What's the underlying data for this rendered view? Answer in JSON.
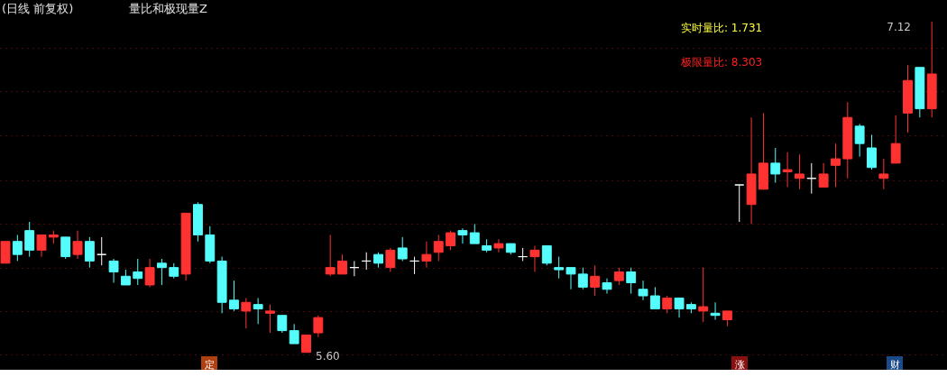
{
  "chart_data": {
    "type": "candlestick",
    "title": "(日线 前复权)",
    "subtitle": "量比和极现量Z",
    "categories": [
      null,
      null,
      null,
      null,
      null,
      null,
      null,
      null,
      null,
      null,
      null,
      null,
      null,
      null,
      null,
      null,
      null,
      null,
      null,
      null,
      null,
      null,
      null,
      null,
      null,
      null,
      null,
      null,
      null,
      null,
      null,
      null,
      null,
      null,
      null,
      null,
      null,
      null,
      null,
      null,
      null,
      null,
      null,
      null,
      null,
      null,
      null,
      null,
      null,
      null,
      null,
      null,
      null,
      null,
      null,
      null,
      null,
      null,
      null,
      null,
      null,
      null,
      null,
      null,
      null,
      null,
      null,
      null,
      null,
      null,
      null,
      null,
      null,
      null,
      null,
      null,
      null,
      null
    ],
    "ohlc": [
      [
        6.01,
        6.11,
        6.01,
        6.11
      ],
      [
        6.11,
        6.14,
        6.02,
        6.05
      ],
      [
        6.16,
        6.2,
        6.04,
        6.07
      ],
      [
        6.07,
        6.14,
        6.04,
        6.14
      ],
      [
        6.13,
        6.16,
        6.1,
        6.14
      ],
      [
        6.13,
        6.13,
        6.03,
        6.04
      ],
      [
        6.05,
        6.16,
        6.03,
        6.11
      ],
      [
        6.11,
        6.13,
        5.99,
        6.02
      ],
      [
        6.05,
        6.13,
        6.0,
        6.05
      ],
      [
        6.02,
        6.03,
        5.92,
        5.97
      ],
      [
        5.95,
        5.98,
        5.91,
        5.91
      ],
      [
        5.97,
        6.03,
        5.91,
        5.94
      ],
      [
        5.91,
        6.03,
        5.9,
        5.99
      ],
      [
        6.01,
        6.03,
        5.91,
        5.99
      ],
      [
        5.99,
        6.01,
        5.94,
        5.95
      ],
      [
        5.96,
        6.24,
        5.93,
        6.24
      ],
      [
        6.28,
        6.29,
        6.11,
        6.14
      ],
      [
        6.14,
        6.18,
        6.01,
        6.02
      ],
      [
        6.02,
        6.04,
        5.78,
        5.83
      ],
      [
        5.84,
        5.93,
        5.79,
        5.8
      ],
      [
        5.79,
        5.85,
        5.71,
        5.83
      ],
      [
        5.82,
        5.85,
        5.73,
        5.8
      ],
      [
        5.78,
        5.82,
        5.69,
        5.79
      ],
      [
        5.77,
        5.77,
        5.69,
        5.7
      ],
      [
        5.7,
        5.73,
        5.64,
        5.64
      ],
      [
        5.6,
        5.68,
        5.6,
        5.68
      ],
      [
        5.69,
        5.77,
        5.67,
        5.76
      ],
      [
        5.96,
        6.14,
        5.95,
        5.99
      ],
      [
        5.96,
        6.05,
        5.96,
        6.02
      ],
      [
        5.99,
        6.02,
        5.95,
        5.99
      ],
      [
        6.02,
        6.06,
        5.98,
        6.02
      ],
      [
        6.05,
        6.06,
        5.99,
        6.01
      ],
      [
        5.99,
        6.08,
        5.97,
        6.07
      ],
      [
        6.08,
        6.13,
        6.02,
        6.03
      ],
      [
        6.02,
        6.04,
        5.96,
        6.02
      ],
      [
        6.02,
        6.11,
        5.99,
        6.05
      ],
      [
        6.06,
        6.14,
        6.02,
        6.11
      ],
      [
        6.09,
        6.16,
        6.07,
        6.15
      ],
      [
        6.16,
        6.17,
        6.1,
        6.14
      ],
      [
        6.15,
        6.19,
        6.1,
        6.1
      ],
      [
        6.09,
        6.12,
        6.06,
        6.07
      ],
      [
        6.08,
        6.12,
        6.06,
        6.1
      ],
      [
        6.1,
        6.1,
        6.05,
        6.06
      ],
      [
        6.04,
        6.08,
        6.02,
        6.04
      ],
      [
        6.04,
        6.09,
        5.97,
        6.07
      ],
      [
        6.09,
        6.09,
        6.0,
        6.01
      ],
      [
        5.99,
        6.04,
        5.94,
        5.98
      ],
      [
        5.99,
        5.99,
        5.89,
        5.96
      ],
      [
        5.96,
        5.99,
        5.89,
        5.9
      ],
      [
        5.9,
        6.0,
        5.86,
        5.95
      ],
      [
        5.92,
        5.94,
        5.87,
        5.89
      ],
      [
        5.93,
        5.99,
        5.91,
        5.97
      ],
      [
        5.97,
        5.99,
        5.87,
        5.92
      ],
      [
        5.89,
        5.93,
        5.84,
        5.86
      ],
      [
        5.86,
        5.9,
        5.8,
        5.8
      ],
      [
        5.8,
        5.86,
        5.78,
        5.85
      ],
      [
        5.85,
        5.85,
        5.76,
        5.8
      ],
      [
        5.82,
        5.83,
        5.78,
        5.8
      ],
      [
        5.79,
        5.99,
        5.74,
        5.81
      ],
      [
        5.78,
        5.83,
        5.75,
        5.77
      ],
      [
        5.75,
        5.79,
        5.72,
        5.79
      ],
      [
        6.37,
        6.37,
        6.2,
        6.37
      ],
      [
        6.28,
        6.68,
        6.19,
        6.42
      ],
      [
        6.35,
        6.7,
        6.35,
        6.47
      ],
      [
        6.47,
        6.54,
        6.38,
        6.42
      ],
      [
        6.43,
        6.52,
        6.36,
        6.44
      ],
      [
        6.4,
        6.51,
        6.35,
        6.42
      ],
      [
        6.4,
        6.47,
        6.33,
        6.4
      ],
      [
        6.36,
        6.47,
        6.36,
        6.42
      ],
      [
        6.46,
        6.56,
        6.36,
        6.49
      ],
      [
        6.49,
        6.75,
        6.4,
        6.68
      ],
      [
        6.64,
        6.65,
        6.5,
        6.56
      ],
      [
        6.54,
        6.6,
        6.44,
        6.45
      ],
      [
        6.4,
        6.49,
        6.35,
        6.42
      ],
      [
        6.47,
        6.69,
        6.47,
        6.56
      ],
      [
        6.7,
        6.92,
        6.61,
        6.85
      ],
      [
        6.91,
        6.91,
        6.68,
        6.72
      ],
      [
        6.72,
        7.12,
        6.68,
        6.88
      ]
    ],
    "colors": [
      "#ff3232",
      "#54fcfc",
      "#54fcfc",
      "#ff3232",
      "#ff3232",
      "#54fcfc",
      "#ff3232",
      "#54fcfc",
      "#ffffff",
      "#54fcfc",
      "#54fcfc",
      "#54fcfc",
      "#ff3232",
      "#54fcfc",
      "#54fcfc",
      "#ff3232",
      "#54fcfc",
      "#54fcfc",
      "#54fcfc",
      "#54fcfc",
      "#ff3232",
      "#54fcfc",
      "#ff3232",
      "#54fcfc",
      "#54fcfc",
      "#ff3232",
      "#ff3232",
      "#ff3232",
      "#ff3232",
      "#ffffff",
      "#ffffff",
      "#54fcfc",
      "#ff3232",
      "#54fcfc",
      "#ffffff",
      "#ff3232",
      "#ff3232",
      "#ff3232",
      "#54fcfc",
      "#54fcfc",
      "#54fcfc",
      "#ff3232",
      "#54fcfc",
      "#ffffff",
      "#ff3232",
      "#54fcfc",
      "#54fcfc",
      "#54fcfc",
      "#54fcfc",
      "#ff3232",
      "#54fcfc",
      "#ff3232",
      "#54fcfc",
      "#54fcfc",
      "#54fcfc",
      "#ff3232",
      "#54fcfc",
      "#54fcfc",
      "#ff3232",
      "#54fcfc",
      "#ff3232",
      "#ffffff",
      "#ff3232",
      "#ff3232",
      "#54fcfc",
      "#ff3232",
      "#ff3232",
      "#ffffff",
      "#ff3232",
      "#ff3232",
      "#ff3232",
      "#54fcfc",
      "#54fcfc",
      "#ff3232",
      "#ff3232",
      "#ff3232",
      "#54fcfc",
      "#ff3232"
    ],
    "ylim": [
      5.52,
      7.22
    ],
    "yticks": [
      {
        "value": 5.59,
        "label": null
      },
      {
        "value": 5.79,
        "label": null
      },
      {
        "value": 5.99,
        "label": null
      },
      {
        "value": 6.19,
        "label": null
      },
      {
        "value": 6.39,
        "label": null
      },
      {
        "value": 6.6,
        "label": null
      },
      {
        "value": 6.8,
        "label": null
      },
      {
        "value": 7.0,
        "label": null
      }
    ],
    "grid": "y",
    "annotations": [
      "实时量比:  1.731",
      "极限量比:  8.303",
      "7.12",
      "5.60",
      "定",
      "涨",
      "财"
    ]
  }
}
